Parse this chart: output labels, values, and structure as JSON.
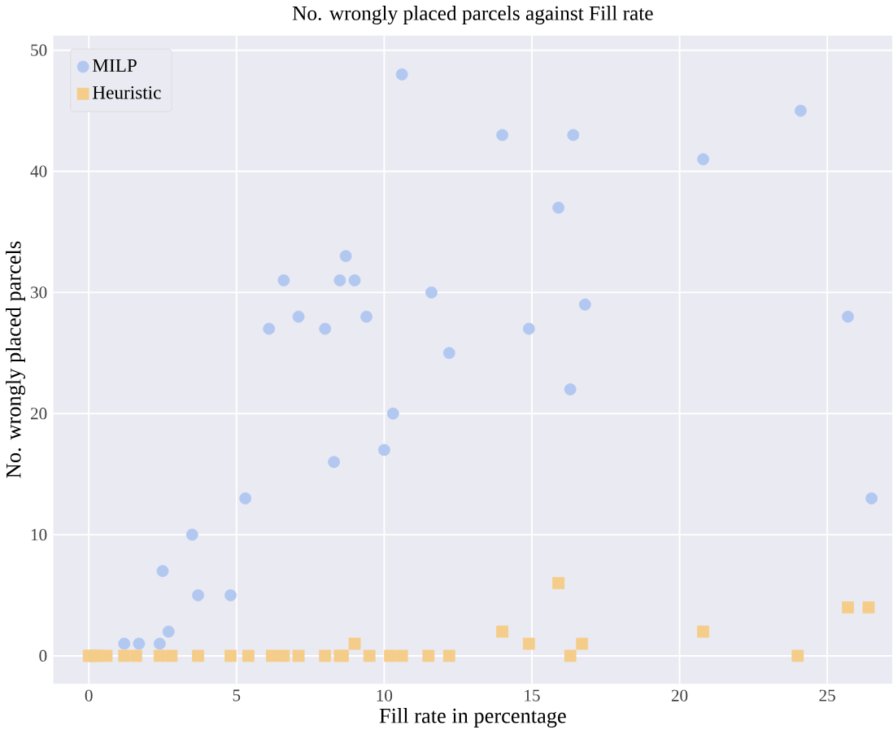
{
  "chart_data": {
    "type": "scatter",
    "title": "No. wrongly placed parcels against Fill rate",
    "xlabel": "Fill rate in percentage",
    "ylabel": "No. wrongly placed parcels",
    "xlim": [
      -1.2,
      27.2
    ],
    "ylim": [
      -2.3,
      51.2
    ],
    "xticks": [
      0,
      5,
      10,
      15,
      20,
      25
    ],
    "yticks": [
      0,
      10,
      20,
      30,
      40,
      50
    ],
    "grid": true,
    "legend": "top left",
    "series": [
      {
        "name": "MILP",
        "color": "#b2c8f0",
        "marker": "circle",
        "x": [
          1.2,
          1.7,
          2.4,
          2.5,
          2.7,
          3.5,
          3.7,
          4.8,
          5.3,
          6.1,
          6.6,
          7.1,
          8.0,
          8.3,
          8.5,
          8.7,
          9.0,
          9.4,
          10.0,
          10.3,
          10.6,
          11.6,
          12.2,
          14.0,
          14.9,
          15.9,
          16.3,
          16.4,
          16.8,
          20.8,
          24.1,
          25.7,
          26.5
        ],
        "values": [
          1,
          1,
          1,
          7,
          2,
          10,
          5,
          5,
          13,
          27,
          31,
          28,
          27,
          16,
          31,
          33,
          31,
          28,
          17,
          20,
          48,
          30,
          25,
          43,
          27,
          37,
          22,
          43,
          29,
          41,
          45,
          28,
          13
        ]
      },
      {
        "name": "Heuristic",
        "color": "#f5cd8a",
        "marker": "square",
        "x": [
          0,
          0.1,
          0.2,
          0.3,
          0.6,
          1.2,
          1.6,
          2.4,
          2.8,
          3.7,
          4.8,
          5.4,
          6.2,
          6.6,
          7.1,
          8.0,
          8.5,
          8.6,
          9.0,
          9.5,
          10.2,
          10.6,
          11.5,
          12.2,
          14.0,
          14.9,
          15.9,
          16.3,
          16.7,
          20.8,
          24.0,
          25.7,
          26.4
        ],
        "values": [
          0,
          0,
          0,
          0,
          0,
          0,
          0,
          0,
          0,
          0,
          0,
          0,
          0,
          0,
          0,
          0,
          0,
          0,
          1,
          0,
          0,
          0,
          0,
          0,
          2,
          1,
          6,
          0,
          1,
          2,
          0,
          4,
          4
        ]
      }
    ]
  }
}
